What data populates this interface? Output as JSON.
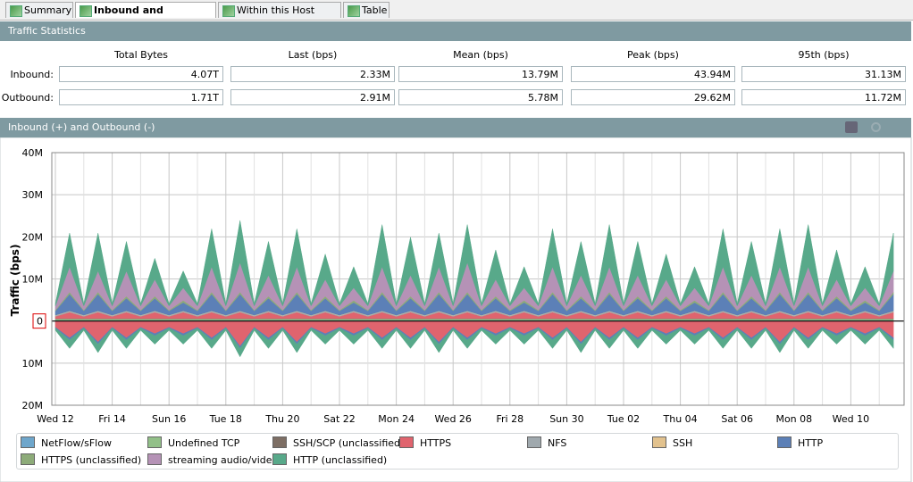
{
  "tabs": [
    "Summary",
    "Inbound and Outbound",
    "Within this Host Group",
    "Table"
  ],
  "stats": {
    "title": "Traffic Statistics",
    "columns": [
      "Total Bytes",
      "Last (bps)",
      "Mean (bps)",
      "Peak (bps)",
      "95th (bps)"
    ],
    "rows": [
      {
        "label": "Inbound:",
        "values": [
          "4.07T",
          "2.33M",
          "13.79M",
          "43.94M",
          "31.13M"
        ]
      },
      {
        "label": "Outbound:",
        "values": [
          "1.71T",
          "2.91M",
          "5.78M",
          "29.62M",
          "11.72M"
        ]
      }
    ]
  },
  "chart_data": {
    "type": "area",
    "title": "Inbound (+) and Outbound (-)",
    "y_label": "Traffic (bps)",
    "stacked": true,
    "grid": true,
    "categories": [
      "Wed 12",
      null,
      null,
      null,
      "Fri 14",
      null,
      null,
      null,
      "Sun 16",
      null,
      null,
      null,
      "Tue 18",
      null,
      null,
      null,
      "Thu 20",
      null,
      null,
      null,
      "Sat 22",
      null,
      null,
      null,
      "Mon 24",
      null,
      null,
      null,
      "Wed 26",
      null,
      null,
      null,
      "Fri 28",
      null,
      null,
      null,
      "Sun 30",
      null,
      null,
      null,
      "Tue 02",
      null,
      null,
      null,
      "Thu 04",
      null,
      null,
      null,
      "Sat 06",
      null,
      null,
      null,
      "Mon 08",
      null,
      null,
      null,
      "Wed 10",
      null,
      null,
      null
    ],
    "ylim": [
      -20,
      40
    ],
    "yticks": [
      {
        "value": -20,
        "label": "20M"
      },
      {
        "value": -10,
        "label": "10M"
      },
      0,
      {
        "value": 10,
        "label": "10M"
      },
      {
        "value": 20,
        "label": "20M"
      },
      {
        "value": 30,
        "label": "30M"
      },
      {
        "value": 40,
        "label": "40M"
      }
    ],
    "series": [
      {
        "name": "NetFlow/sFlow",
        "color": "#6ea6cb",
        "values": [
          0.2,
          0.2,
          0.2,
          0.2,
          0.2,
          0.2,
          0.2,
          0.2,
          0.2,
          0.2,
          0.2,
          0.2,
          0.2,
          0.2,
          0.2,
          0.2,
          0.2,
          0.2,
          0.2,
          0.2,
          0.2,
          0.2,
          0.2,
          0.2,
          0.2,
          0.2,
          0.2,
          0.2,
          0.2,
          0.2,
          0.2,
          0.2,
          0.2,
          0.2,
          0.2,
          0.2,
          0.2,
          0.2,
          0.2,
          0.2,
          0.2,
          0.2,
          0.2,
          0.2,
          0.2,
          0.2,
          0.2,
          0.2,
          0.2,
          0.2,
          0.2,
          0.2,
          0.2,
          0.2,
          0.2,
          0.2,
          0.2,
          0.2,
          0.2,
          0.2
        ]
      },
      {
        "name": "Undefined TCP",
        "color": "#92c088",
        "values": [
          0.3,
          0.3,
          0.3,
          0.3,
          0.3,
          0.3,
          0.3,
          0.3,
          0.3,
          0.3,
          0.3,
          0.3,
          0.3,
          0.3,
          0.3,
          0.3,
          0.3,
          0.3,
          0.3,
          0.3,
          0.3,
          0.3,
          0.3,
          0.3,
          0.3,
          0.3,
          0.3,
          0.3,
          0.3,
          0.3,
          0.3,
          0.3,
          0.3,
          0.3,
          0.3,
          0.3,
          0.3,
          0.3,
          0.3,
          0.3,
          0.3,
          0.3,
          0.3,
          0.3,
          0.3,
          0.3,
          0.3,
          0.3,
          0.3,
          0.3,
          0.3,
          0.3,
          0.3,
          0.3,
          0.3,
          0.3,
          0.3,
          0.3,
          0.3,
          0.3
        ]
      },
      {
        "name": "SSH/SCP (unclassified)",
        "color": "#7d6e64",
        "values": [
          0.1,
          0.1,
          0.1,
          0.1,
          0.1,
          0.1,
          0.1,
          0.1,
          0.1,
          0.1,
          0.1,
          0.1,
          0.1,
          0.1,
          0.1,
          0.1,
          0.1,
          0.1,
          0.1,
          0.1,
          0.1,
          0.1,
          0.1,
          0.1,
          0.1,
          0.1,
          0.1,
          0.1,
          0.1,
          0.1,
          0.1,
          0.1,
          0.1,
          0.1,
          0.1,
          0.1,
          0.1,
          0.1,
          0.1,
          0.1,
          0.1,
          0.1,
          0.1,
          0.1,
          0.1,
          0.1,
          0.1,
          0.1,
          0.1,
          0.1,
          0.1,
          0.1,
          0.1,
          0.1,
          0.1,
          0.1,
          0.1,
          0.1,
          0.1,
          0.1
        ]
      },
      {
        "name": "HTTPS",
        "color": "#e0646e",
        "values": [
          0.5,
          1.5,
          0.5,
          1.5,
          0.5,
          1.5,
          0.5,
          1.5,
          0.5,
          1.5,
          0.5,
          1.5,
          0.5,
          1.5,
          0.5,
          1.5,
          0.5,
          1.5,
          0.5,
          1.5,
          0.5,
          1.5,
          0.5,
          1.5,
          0.5,
          1.5,
          0.5,
          1.5,
          0.5,
          1.5,
          0.5,
          1.5,
          0.5,
          1.5,
          0.5,
          1.5,
          0.5,
          1.5,
          0.5,
          1.5,
          0.5,
          1.5,
          0.5,
          1.5,
          0.5,
          1.5,
          0.5,
          1.5,
          0.5,
          1.5,
          0.5,
          1.5,
          0.5,
          1.5,
          0.5,
          1.5,
          0.5,
          1.5,
          0.5,
          1.5
        ],
        "outbound": [
          -1.5,
          -4,
          -1.5,
          -5,
          -1.5,
          -4,
          -1.5,
          -3,
          -1.5,
          -3,
          -1.5,
          -4,
          -1.5,
          -6,
          -1.5,
          -4,
          -1.5,
          -5,
          -1.5,
          -3,
          -1.5,
          -3,
          -1.5,
          -4,
          -1.5,
          -4,
          -1.5,
          -5,
          -1.5,
          -4,
          -1.5,
          -3,
          -1.5,
          -3,
          -1.5,
          -4,
          -1.5,
          -5,
          -1.5,
          -4,
          -1.5,
          -4,
          -1.5,
          -3,
          -1.5,
          -3,
          -1.5,
          -4,
          -1.5,
          -4,
          -1.5,
          -5,
          -1.5,
          -4,
          -1.5,
          -3,
          -1.5,
          -3,
          -1.5,
          -4
        ]
      },
      {
        "name": "NFS",
        "color": "#a0a9ae",
        "values": [
          0.2,
          0.2,
          0.2,
          0.2,
          0.2,
          0.2,
          0.2,
          0.2,
          0.2,
          0.2,
          0.2,
          0.2,
          0.2,
          0.2,
          0.2,
          0.2,
          0.2,
          0.2,
          0.2,
          0.2,
          0.2,
          0.2,
          0.2,
          0.2,
          0.2,
          0.2,
          0.2,
          0.2,
          0.2,
          0.2,
          0.2,
          0.2,
          0.2,
          0.2,
          0.2,
          0.2,
          0.2,
          0.2,
          0.2,
          0.2,
          0.2,
          0.2,
          0.2,
          0.2,
          0.2,
          0.2,
          0.2,
          0.2,
          0.2,
          0.2,
          0.2,
          0.2,
          0.2,
          0.2,
          0.2,
          0.2,
          0.2,
          0.2,
          0.2,
          0.2
        ]
      },
      {
        "name": "SSH",
        "color": "#e2c28e",
        "values": [
          0.1,
          0.1,
          0.1,
          0.1,
          0.1,
          0.1,
          0.1,
          0.1,
          0.1,
          0.1,
          0.1,
          0.1,
          0.1,
          0.1,
          0.1,
          0.1,
          0.1,
          0.1,
          0.1,
          0.1,
          0.1,
          0.1,
          0.1,
          0.1,
          0.1,
          0.1,
          0.1,
          0.1,
          0.1,
          0.1,
          0.1,
          0.1,
          0.1,
          0.1,
          0.1,
          0.1,
          0.1,
          0.1,
          0.1,
          0.1,
          0.1,
          0.1,
          0.1,
          0.1,
          0.1,
          0.1,
          0.1,
          0.1,
          0.1,
          0.1,
          0.1,
          0.1,
          0.1,
          0.1,
          0.1,
          0.1,
          0.1,
          0.1,
          0.1,
          0.1
        ]
      },
      {
        "name": "HTTP",
        "color": "#5c80b7",
        "values": [
          1,
          4,
          1,
          4,
          1,
          3,
          1,
          3,
          1,
          2,
          1,
          4,
          1,
          4,
          1,
          3,
          1,
          4,
          1,
          3,
          1,
          2,
          1,
          4,
          1,
          3,
          1,
          4,
          1,
          4,
          1,
          3,
          1,
          2,
          1,
          4,
          1,
          3,
          1,
          4,
          1,
          3,
          1,
          3,
          1,
          2,
          1,
          4,
          1,
          3,
          1,
          4,
          1,
          4,
          1,
          3,
          1,
          2,
          1,
          4
        ],
        "outbound": [
          -0.2,
          -0.5,
          -0.2,
          -0.5,
          -0.2,
          -0.5,
          -0.2,
          -0.5,
          -0.2,
          -0.5,
          -0.2,
          -0.5,
          -0.2,
          -0.5,
          -0.2,
          -0.5,
          -0.2,
          -0.5,
          -0.2,
          -0.5,
          -0.2,
          -0.5,
          -0.2,
          -0.5,
          -0.2,
          -0.5,
          -0.2,
          -0.5,
          -0.2,
          -0.5,
          -0.2,
          -0.5,
          -0.2,
          -0.5,
          -0.2,
          -0.5,
          -0.2,
          -0.5,
          -0.2,
          -0.5,
          -0.2,
          -0.5,
          -0.2,
          -0.5,
          -0.2,
          -0.5,
          -0.2,
          -0.5,
          -0.2,
          -0.5,
          -0.2,
          -0.5,
          -0.2,
          -0.5,
          -0.2,
          -0.5,
          -0.2,
          -0.5,
          -0.2,
          -0.5
        ]
      },
      {
        "name": "HTTPS (unclassified)",
        "color": "#8dab79",
        "values": [
          0.2,
          0.5,
          0.2,
          0.5,
          0.2,
          0.5,
          0.2,
          0.5,
          0.2,
          0.5,
          0.2,
          0.5,
          0.2,
          0.5,
          0.2,
          0.5,
          0.2,
          0.5,
          0.2,
          0.5,
          0.2,
          0.5,
          0.2,
          0.5,
          0.2,
          0.5,
          0.2,
          0.5,
          0.2,
          0.5,
          0.2,
          0.5,
          0.2,
          0.5,
          0.2,
          0.5,
          0.2,
          0.5,
          0.2,
          0.5,
          0.2,
          0.5,
          0.2,
          0.5,
          0.2,
          0.5,
          0.2,
          0.5,
          0.2,
          0.5,
          0.2,
          0.5,
          0.2,
          0.5,
          0.2,
          0.5,
          0.2,
          0.5,
          0.2,
          0.5
        ]
      },
      {
        "name": "streaming audio/video",
        "color": "#b592b6",
        "values": [
          1,
          6,
          1,
          5,
          1,
          6,
          1,
          4,
          1,
          3,
          1,
          6,
          1,
          7,
          1,
          5,
          1,
          6,
          1,
          4,
          1,
          3,
          1,
          6,
          1,
          5,
          1,
          6,
          1,
          7,
          1,
          4,
          1,
          3,
          1,
          6,
          1,
          5,
          1,
          6,
          1,
          5,
          1,
          4,
          1,
          3,
          1,
          6,
          1,
          5,
          1,
          6,
          1,
          6,
          1,
          4,
          1,
          3,
          1,
          5
        ]
      },
      {
        "name": "HTTP (unclassified)",
        "color": "#58a98a",
        "values": [
          0.5,
          8,
          0.5,
          9,
          0.5,
          7,
          0.5,
          5,
          0.5,
          4,
          0.5,
          9,
          0.5,
          10,
          0.5,
          8,
          0.5,
          9,
          0.5,
          6,
          0.5,
          5,
          0.5,
          10,
          0.5,
          9,
          0.5,
          8,
          0.5,
          9,
          0.5,
          7,
          0.5,
          5,
          0.5,
          9,
          0.5,
          8,
          0.5,
          10,
          0.5,
          8,
          0.5,
          6,
          0.5,
          5,
          0.5,
          9,
          0.5,
          8,
          0.5,
          9,
          0.5,
          10,
          0.5,
          7,
          0.5,
          5,
          0.5,
          9
        ],
        "outbound": [
          -0.5,
          -2,
          -0.5,
          -2,
          -0.5,
          -2,
          -0.5,
          -2,
          -0.5,
          -2,
          -0.5,
          -2,
          -0.5,
          -2,
          -0.5,
          -2,
          -0.5,
          -2,
          -0.5,
          -2,
          -0.5,
          -2,
          -0.5,
          -2,
          -0.5,
          -2,
          -0.5,
          -2,
          -0.5,
          -2,
          -0.5,
          -2,
          -0.5,
          -2,
          -0.5,
          -2,
          -0.5,
          -2,
          -0.5,
          -2,
          -0.5,
          -2,
          -0.5,
          -2,
          -0.5,
          -2,
          -0.5,
          -2,
          -0.5,
          -2,
          -0.5,
          -2,
          -0.5,
          -2,
          -0.5,
          -2,
          -0.5,
          -2,
          -0.5,
          -2
        ]
      }
    ]
  }
}
